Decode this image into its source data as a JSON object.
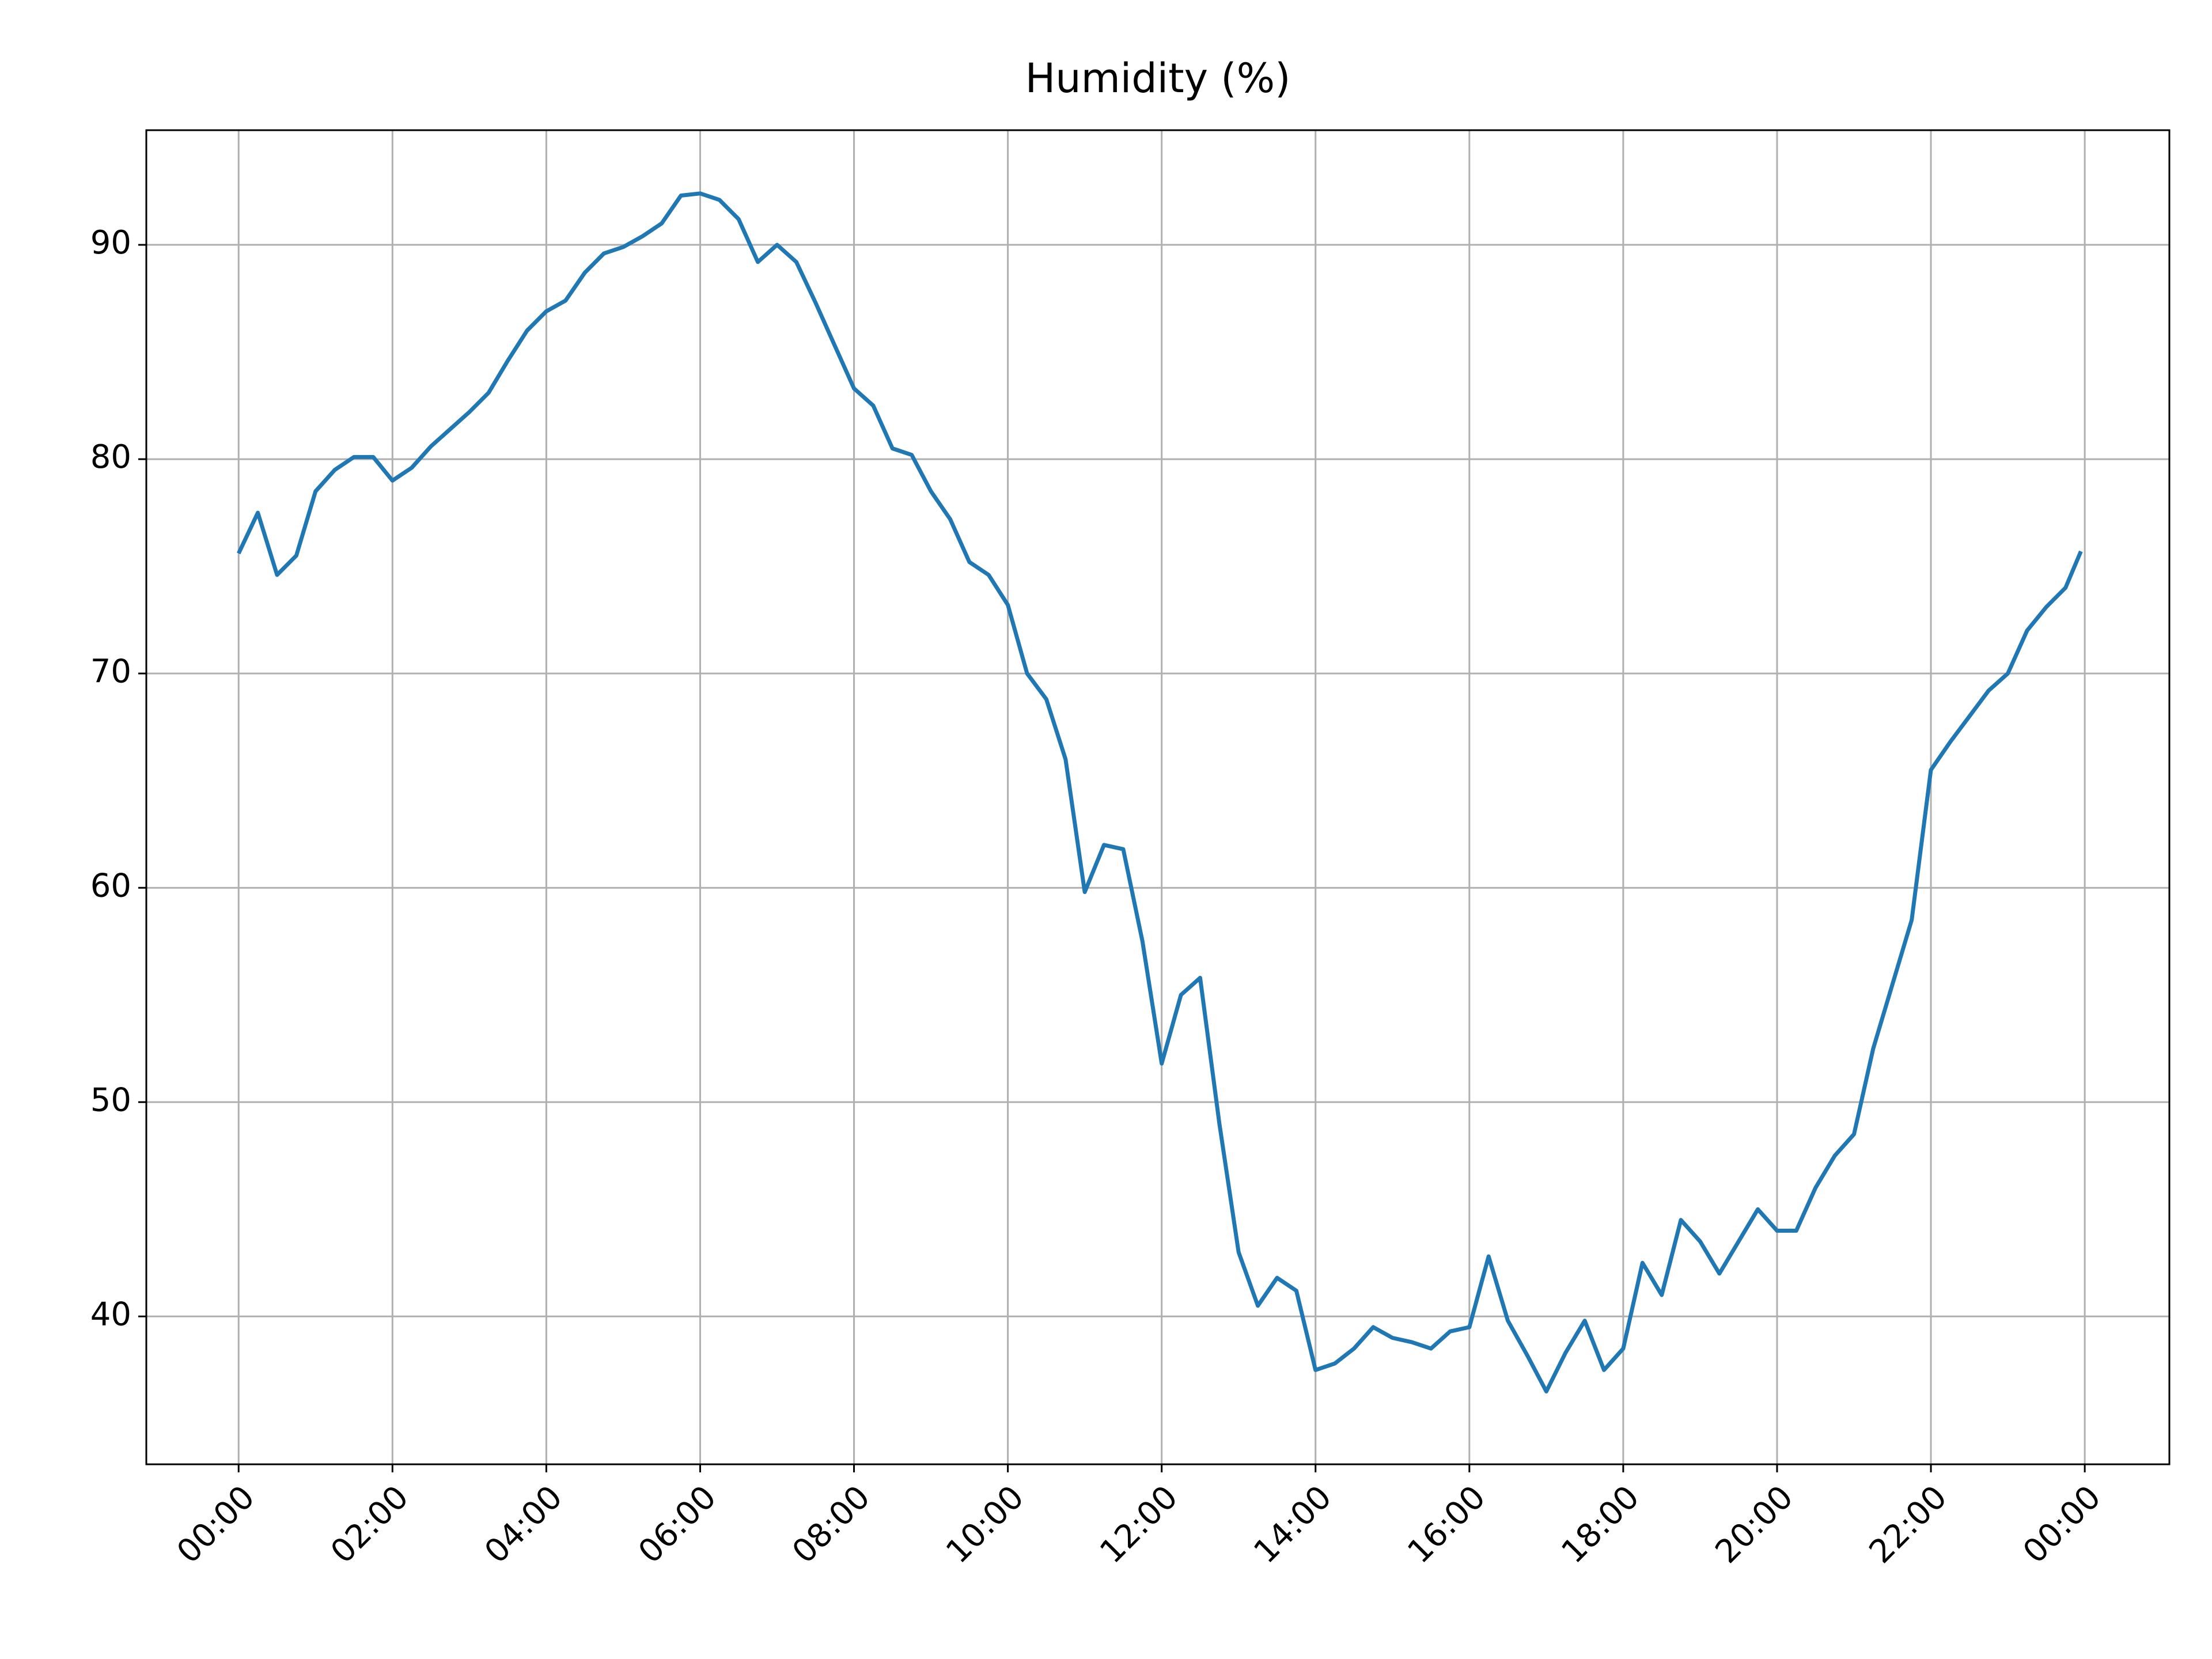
{
  "chart_data": {
    "type": "line",
    "title": "Humidity (%)",
    "x": [
      0,
      0.25,
      0.5,
      0.75,
      1,
      1.25,
      1.5,
      1.75,
      2,
      2.25,
      2.5,
      2.75,
      3,
      3.25,
      3.5,
      3.75,
      4,
      4.25,
      4.5,
      4.75,
      5,
      5.25,
      5.5,
      5.75,
      6,
      6.25,
      6.5,
      6.75,
      7,
      7.25,
      7.5,
      7.75,
      8,
      8.25,
      8.5,
      8.75,
      9,
      9.25,
      9.5,
      9.75,
      10,
      10.25,
      10.5,
      10.75,
      11,
      11.25,
      11.5,
      11.75,
      12,
      12.25,
      12.5,
      12.75,
      13,
      13.25,
      13.5,
      13.75,
      14,
      14.25,
      14.5,
      14.75,
      15,
      15.25,
      15.5,
      15.75,
      16,
      16.25,
      16.5,
      16.75,
      17,
      17.25,
      17.5,
      17.75,
      18,
      18.25,
      18.5,
      18.75,
      19,
      19.25,
      19.5,
      19.75,
      20,
      20.25,
      20.5,
      20.75,
      21,
      21.25,
      21.5,
      21.75,
      22,
      22.25,
      22.5,
      22.75,
      23,
      23.25,
      23.5,
      23.75,
      23.95
    ],
    "series": [
      {
        "name": "Humidity",
        "color": "#1f77b4",
        "values": [
          75.6,
          77.5,
          74.6,
          75.5,
          78.5,
          79.5,
          80.1,
          80.1,
          79.0,
          79.6,
          80.6,
          81.4,
          82.2,
          83.1,
          84.6,
          86.0,
          86.9,
          87.4,
          88.7,
          89.6,
          89.9,
          90.4,
          91.0,
          92.3,
          92.4,
          92.1,
          91.2,
          89.2,
          90.0,
          89.2,
          87.3,
          85.3,
          83.3,
          82.5,
          80.5,
          80.2,
          78.5,
          77.2,
          75.2,
          74.6,
          73.2,
          70.0,
          68.8,
          66.0,
          59.8,
          62.0,
          61.8,
          57.5,
          51.8,
          55.0,
          55.8,
          49.0,
          43.0,
          40.5,
          41.8,
          41.2,
          37.5,
          37.8,
          38.5,
          39.5,
          39.0,
          38.8,
          38.5,
          39.3,
          39.5,
          42.8,
          39.8,
          38.2,
          36.5,
          38.3,
          39.8,
          37.5,
          38.5,
          42.5,
          41.0,
          44.5,
          43.5,
          42.0,
          43.5,
          45.0,
          44.0,
          44.0,
          46.0,
          47.5,
          48.5,
          52.5,
          55.5,
          58.5,
          65.5,
          66.8,
          68.0,
          69.2,
          70.0,
          72.0,
          73.1,
          74.0,
          75.7
        ]
      }
    ],
    "xlim": [
      -1.2,
      25.1
    ],
    "ylim": [
      33.1,
      95.35
    ],
    "xticks": [
      {
        "value": 0,
        "label": "00:00"
      },
      {
        "value": 2,
        "label": "02:00"
      },
      {
        "value": 4,
        "label": "04:00"
      },
      {
        "value": 6,
        "label": "06:00"
      },
      {
        "value": 8,
        "label": "08:00"
      },
      {
        "value": 10,
        "label": "10:00"
      },
      {
        "value": 12,
        "label": "12:00"
      },
      {
        "value": 14,
        "label": "14:00"
      },
      {
        "value": 16,
        "label": "16:00"
      },
      {
        "value": 18,
        "label": "18:00"
      },
      {
        "value": 20,
        "label": "20:00"
      },
      {
        "value": 22,
        "label": "22:00"
      },
      {
        "value": 24,
        "label": "00:00"
      }
    ],
    "yticks": [
      40,
      50,
      60,
      70,
      80,
      90
    ],
    "grid": true
  }
}
